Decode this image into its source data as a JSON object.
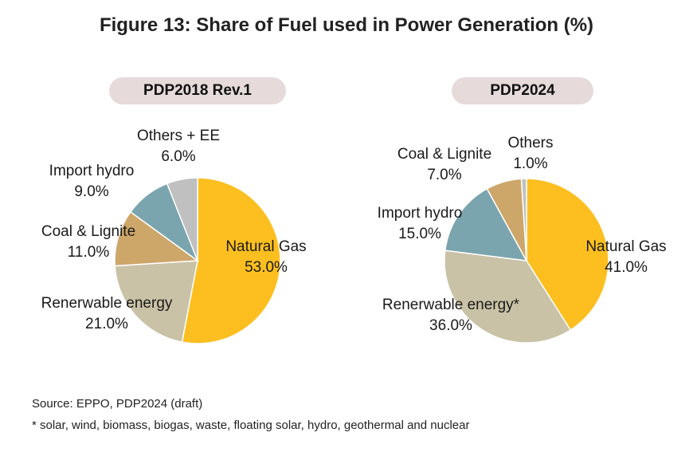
{
  "title": "Figure 13: Share of  Fuel used in Power Generation (%)",
  "chart_data": [
    {
      "type": "pie",
      "title": "PDP2018 Rev.1",
      "slices": [
        {
          "label": "Natural Gas",
          "value": 53.0,
          "value_label": "53.0%",
          "color": "#FDBF1F"
        },
        {
          "label": "Renerwable energy",
          "value": 21.0,
          "value_label": "21.0%",
          "color": "#C9C2A6"
        },
        {
          "label": "Coal & Lignite",
          "value": 11.0,
          "value_label": "11.0%",
          "color": "#CDA66A"
        },
        {
          "label": "Import hydro",
          "value": 9.0,
          "value_label": "9.0%",
          "color": "#7BA5AE"
        },
        {
          "label": "Others + EE",
          "value": 6.0,
          "value_label": "6.0%",
          "color": "#C0C0C0"
        }
      ]
    },
    {
      "type": "pie",
      "title": "PDP2024",
      "slices": [
        {
          "label": "Natural Gas",
          "value": 41.0,
          "value_label": "41.0%",
          "color": "#FDBF1F"
        },
        {
          "label": "Renerwable energy*",
          "value": 36.0,
          "value_label": "36.0%",
          "color": "#C9C2A6"
        },
        {
          "label": "Import hydro",
          "value": 15.0,
          "value_label": "15.0%",
          "color": "#7BA5AE"
        },
        {
          "label": "Coal & Lignite",
          "value": 7.0,
          "value_label": "7.0%",
          "color": "#CDA66A"
        },
        {
          "label": "Others",
          "value": 1.0,
          "value_label": "1.0%",
          "color": "#C0C0C0"
        }
      ]
    }
  ],
  "source": "Source: EPPO, PDP2024 (draft)",
  "footnote": "* solar, wind, biomass, biogas, waste, floating solar, hydro,  geothermal and nuclear"
}
